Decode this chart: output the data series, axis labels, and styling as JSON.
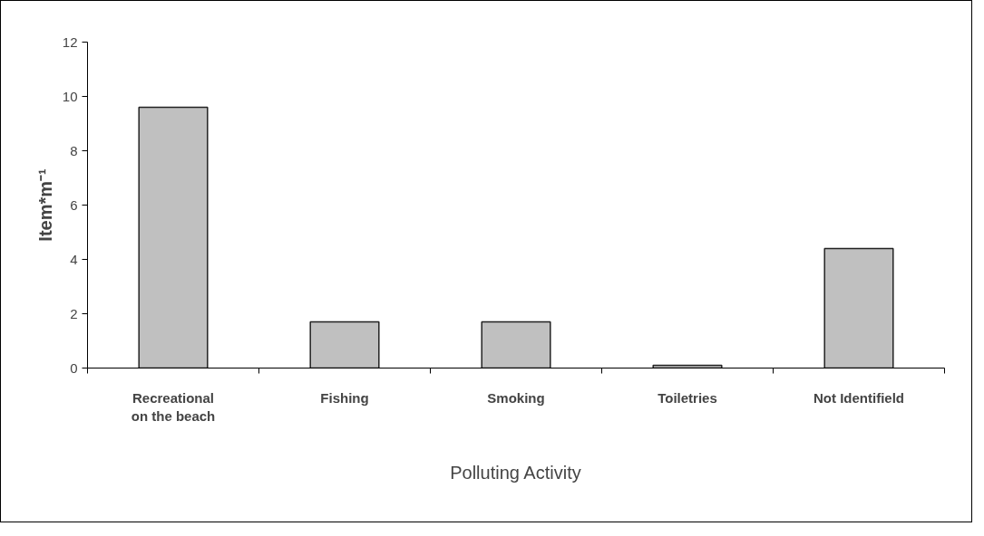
{
  "chart_data": {
    "type": "bar",
    "xlabel": "Polluting Activity",
    "ylabel": "Item*m⁻¹",
    "categories": [
      "Recreational on the beach",
      "Fishing",
      "Smoking",
      "Toiletries",
      "Not Identifield"
    ],
    "values": [
      9.6,
      1.7,
      1.7,
      0.1,
      4.4
    ],
    "color": "#c0c0c0",
    "ylim": [
      0,
      12
    ],
    "yticks": [
      0,
      2,
      4,
      6,
      8,
      10,
      12
    ],
    "grid": false
  }
}
